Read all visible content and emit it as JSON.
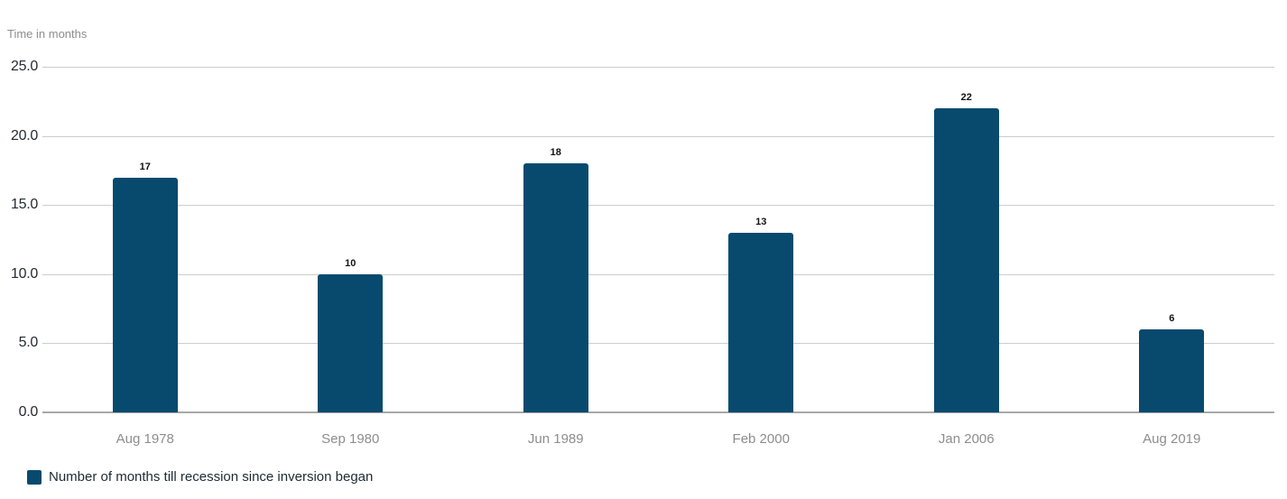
{
  "chart_data": {
    "type": "bar",
    "title": "",
    "xlabel": "",
    "ylabel": "Time in months",
    "categories": [
      "Aug 1978",
      "Sep 1980",
      "Jun 1989",
      "Feb 2000",
      "Jan 2006",
      "Aug 2019"
    ],
    "values": [
      17,
      10,
      18,
      13,
      22,
      6
    ],
    "bar_labels": [
      "17",
      "10",
      "18",
      "13",
      "22",
      "6"
    ],
    "ylim": [
      0,
      25
    ],
    "yticks": [
      25,
      20,
      15,
      10,
      5,
      0
    ],
    "ytick_labels": [
      "25.0",
      "20.0",
      "15.0",
      "10.0",
      "5.0",
      "0.0"
    ],
    "grid": true,
    "legend_label": "Number of months till recession since inversion began",
    "legend_position": "bottom-left",
    "bar_color": "#074a6e"
  },
  "colors": {
    "bar": "#074a6e",
    "gridline": "#cccccc",
    "baseline": "#a8a8a8",
    "tick_text": "#242b31",
    "muted_text": "#8d8d8d",
    "value_text": "#111111",
    "legend_text": "#1c2b33",
    "background": "#ffffff"
  }
}
